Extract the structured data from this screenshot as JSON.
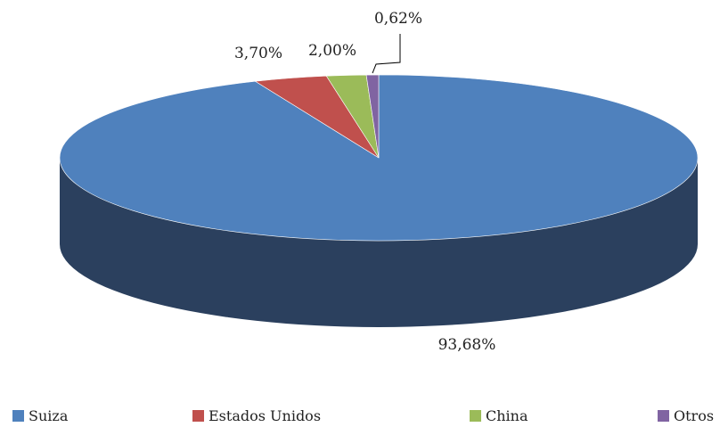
{
  "chart_data": {
    "type": "pie",
    "variant": "3d",
    "categories": [
      "Suiza",
      "Estados Unidos",
      "China",
      "Otros"
    ],
    "values": [
      93.68,
      3.7,
      2.0,
      0.62
    ],
    "data_labels": [
      "93,68%",
      "3,70%",
      "2,00%",
      "0,62%"
    ],
    "colors": [
      "#4F81BD",
      "#C0504D",
      "#9BBB59",
      "#8064A2"
    ],
    "side_color": "#2B405E",
    "legend_position": "bottom",
    "title": ""
  }
}
